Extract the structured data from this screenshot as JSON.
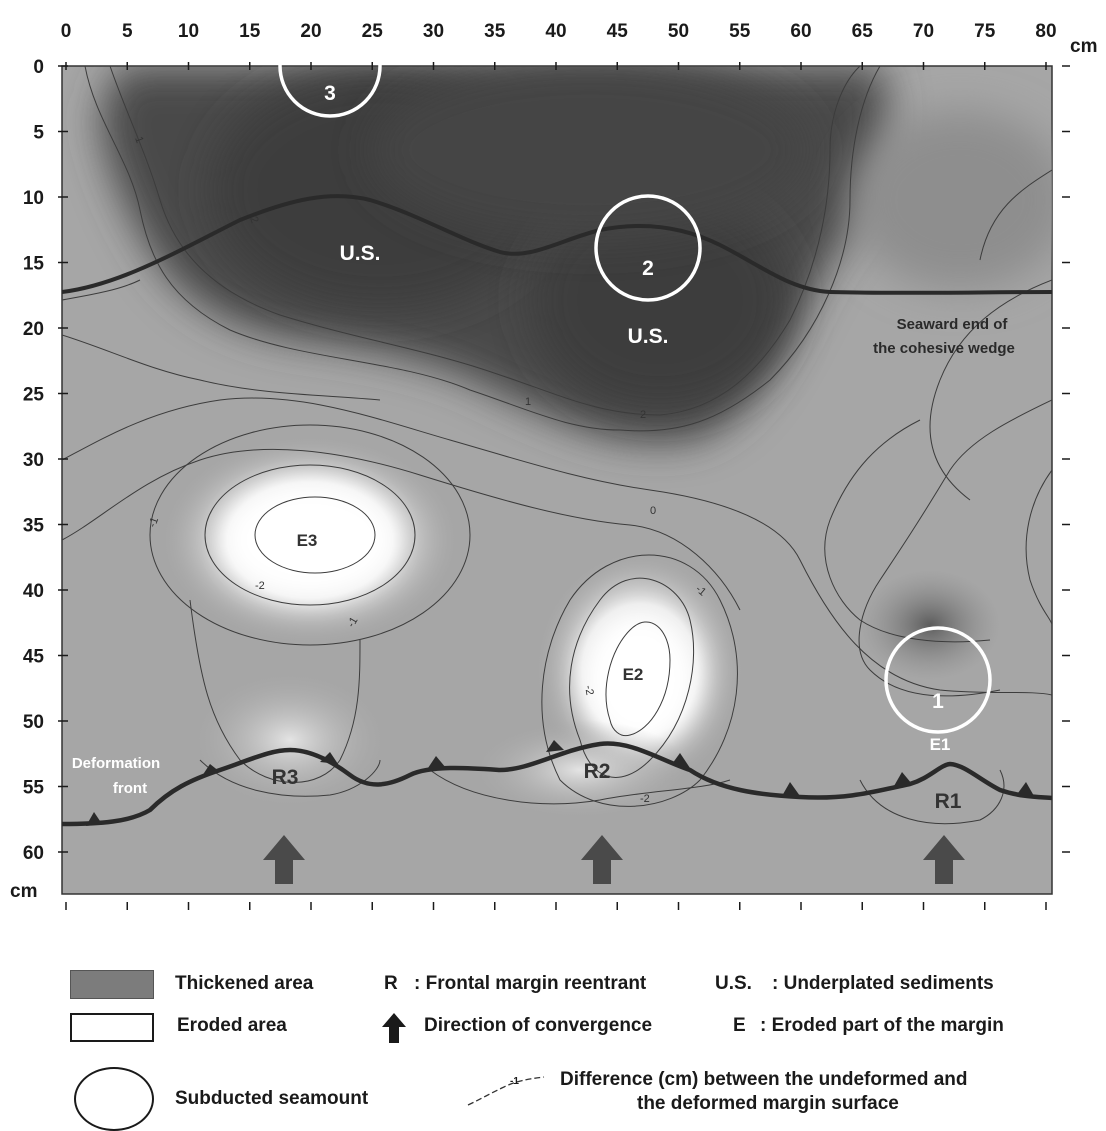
{
  "x_axis": {
    "ticks": [
      "0",
      "5",
      "10",
      "15",
      "20",
      "25",
      "30",
      "35",
      "40",
      "45",
      "50",
      "55",
      "60",
      "65",
      "70",
      "75",
      "80"
    ],
    "unit": "cm"
  },
  "y_axis": {
    "ticks": [
      "0",
      "5",
      "10",
      "15",
      "20",
      "25",
      "30",
      "35",
      "40",
      "45",
      "50",
      "55",
      "60"
    ],
    "unit": "cm"
  },
  "map_labels": {
    "us_left": "U.S.",
    "us_right": "U.S.",
    "seamount_3": "3",
    "seamount_2": "2",
    "seamount_1": "1",
    "e3": "E3",
    "e2": "E2",
    "e1": "E1",
    "r1": "R1",
    "r2": "R2",
    "r3": "R3",
    "deformation_front_1": "Deformation",
    "deformation_front_2": "front",
    "seaward_end_1": "Seaward end of",
    "seaward_end_2": "the cohesive wedge"
  },
  "contour_labels": {
    "c1": "1",
    "c2": "2",
    "c3": "1",
    "c4": "2",
    "c5": "0",
    "c6": "-1",
    "c7": "-2",
    "c8": "-1",
    "c9": "-1",
    "c10": "-2",
    "c11": "-2"
  },
  "legend": {
    "thickened": "Thickened area",
    "eroded": "Eroded area",
    "seamount": "Subducted seamount",
    "r_key": "R",
    "r_desc": ": Frontal margin reentrant",
    "convergence": "Direction of convergence",
    "difference_1": "Difference (cm) between the undeformed and",
    "difference_2": "the deformed margin surface",
    "difference_sample": "-1",
    "us_key": "U.S.",
    "us_desc": ": Underplated sediments",
    "e_key": "E",
    "e_desc": ": Eroded part of the margin"
  },
  "colors": {
    "thickened": "#4a4a4a",
    "background": "#a6a6a6",
    "eroded": "#ffffff",
    "line": "#333333"
  }
}
